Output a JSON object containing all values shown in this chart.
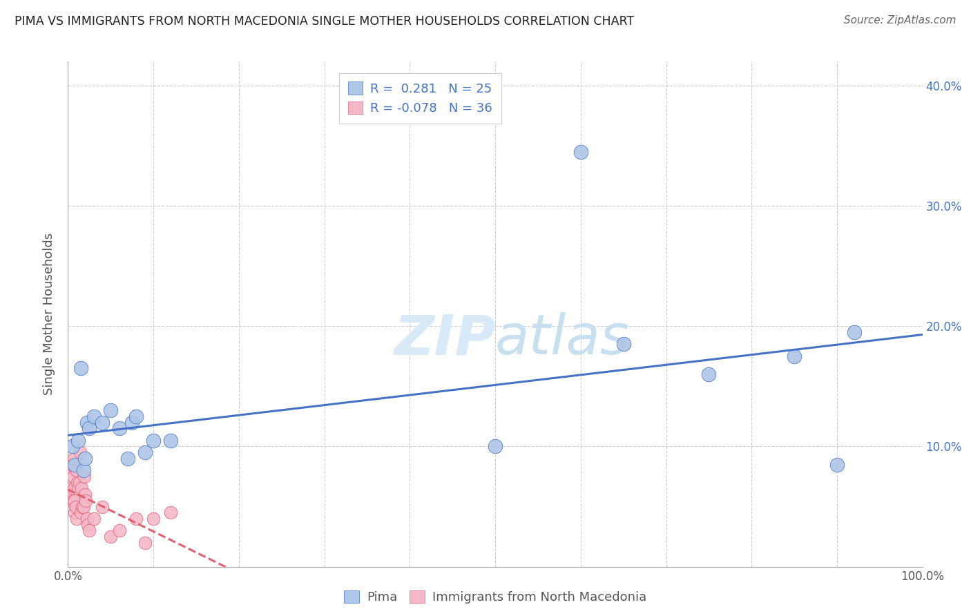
{
  "title": "PIMA VS IMMIGRANTS FROM NORTH MACEDONIA SINGLE MOTHER HOUSEHOLDS CORRELATION CHART",
  "source": "Source: ZipAtlas.com",
  "ylabel": "Single Mother Households",
  "xlim": [
    0,
    1.0
  ],
  "ylim": [
    0,
    0.42
  ],
  "pima_color": "#aec6e8",
  "immigrant_color": "#f5b8c8",
  "trendline_pima_color": "#4472c4",
  "trendline_imm_color": "#e06070",
  "pima_R": 0.281,
  "pima_N": 25,
  "imm_R": -0.078,
  "imm_N": 36,
  "watermark_zip": "ZIP",
  "watermark_atlas": "atlas",
  "background_color": "#ffffff",
  "grid_color": "#cccccc",
  "pima_x": [
    0.005,
    0.008,
    0.012,
    0.015,
    0.018,
    0.02,
    0.022,
    0.025,
    0.03,
    0.04,
    0.05,
    0.06,
    0.07,
    0.075,
    0.08,
    0.09,
    0.1,
    0.12,
    0.5,
    0.6,
    0.65,
    0.75,
    0.85,
    0.9,
    0.92
  ],
  "pima_y": [
    0.1,
    0.085,
    0.105,
    0.165,
    0.08,
    0.09,
    0.12,
    0.115,
    0.125,
    0.12,
    0.13,
    0.115,
    0.09,
    0.12,
    0.125,
    0.095,
    0.105,
    0.105,
    0.1,
    0.345,
    0.185,
    0.16,
    0.175,
    0.085,
    0.195
  ],
  "imm_x": [
    0.002,
    0.003,
    0.004,
    0.005,
    0.005,
    0.006,
    0.006,
    0.007,
    0.007,
    0.008,
    0.008,
    0.009,
    0.01,
    0.01,
    0.011,
    0.012,
    0.013,
    0.014,
    0.015,
    0.016,
    0.017,
    0.018,
    0.019,
    0.02,
    0.021,
    0.022,
    0.023,
    0.025,
    0.03,
    0.04,
    0.05,
    0.06,
    0.08,
    0.09,
    0.1,
    0.12
  ],
  "imm_y": [
    0.055,
    0.08,
    0.065,
    0.06,
    0.085,
    0.055,
    0.075,
    0.065,
    0.09,
    0.055,
    0.045,
    0.05,
    0.04,
    0.08,
    0.07,
    0.065,
    0.07,
    0.095,
    0.045,
    0.065,
    0.05,
    0.05,
    0.075,
    0.06,
    0.055,
    0.04,
    0.035,
    0.03,
    0.04,
    0.05,
    0.025,
    0.03,
    0.04,
    0.02,
    0.04,
    0.045
  ]
}
